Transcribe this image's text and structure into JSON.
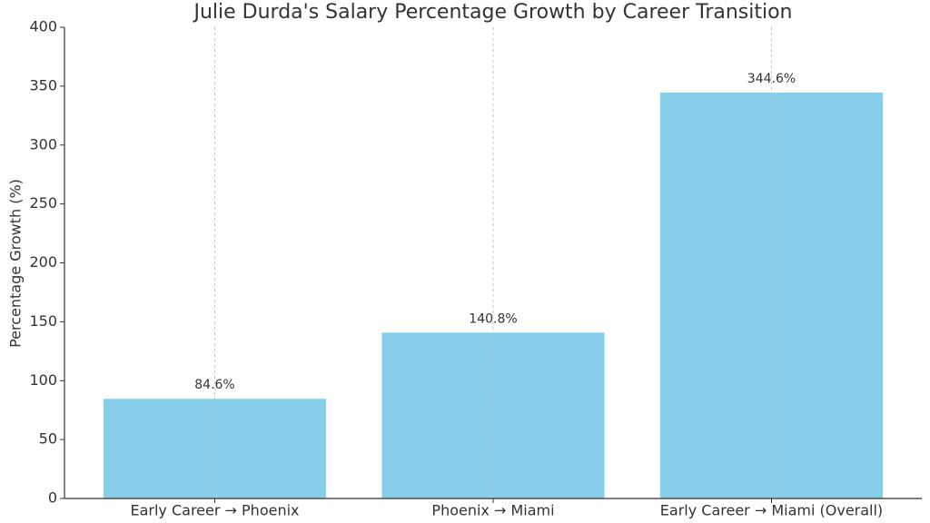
{
  "chart_data": {
    "type": "bar",
    "title": "Julie Durda's Salary Percentage Growth by Career Transition",
    "y_label": "Percentage Growth (%)",
    "categories": [
      "Early Career → Phoenix",
      "Phoenix → Miami",
      "Early Career → Miami (Overall)"
    ],
    "values": [
      84.6,
      140.8,
      344.6
    ],
    "value_labels": [
      "84.6%",
      "140.8%",
      "344.6%"
    ],
    "color": "#87ceeb",
    "ylim": [
      0,
      400
    ],
    "yticks": [
      0,
      50,
      100,
      150,
      200,
      250,
      300,
      350,
      400
    ],
    "grid": "x"
  }
}
